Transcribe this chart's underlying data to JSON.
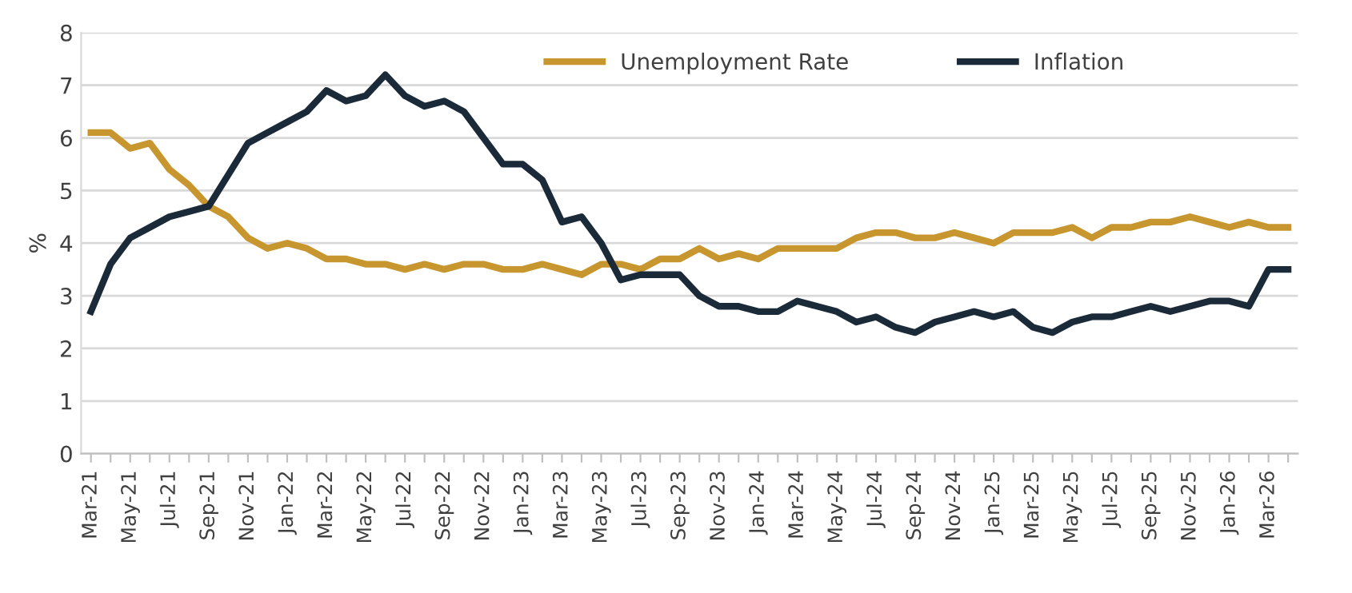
{
  "chart_data": {
    "type": "line",
    "ylabel": "%",
    "categories": [
      "Mar-21",
      null,
      "May-21",
      null,
      "Jul-21",
      null,
      "Sep-21",
      null,
      "Nov-21",
      null,
      "Jan-22",
      null,
      "Mar-22",
      null,
      "May-22",
      null,
      "Jul-22",
      null,
      "Sep-22",
      null,
      "Nov-22",
      null,
      "Jan-23",
      null,
      "Mar-23",
      null,
      "May-23",
      null,
      "Jul-23",
      null,
      "Sep-23",
      null,
      "Nov-23",
      null,
      "Jan-24",
      null,
      "Mar-24",
      null,
      "May-24",
      null,
      "Jul-24",
      null,
      "Sep-24",
      null,
      "Nov-24",
      null,
      "Jan-25",
      null,
      "Mar-25",
      null,
      "May-25",
      null,
      "Jul-25",
      null,
      "Sep-25",
      null,
      "Nov-25",
      null,
      "Jan-26",
      null,
      "Mar-26",
      null
    ],
    "series": [
      {
        "name": "Unemployment Rate",
        "color": "#c8962e",
        "values": [
          6.1,
          6.1,
          5.8,
          5.9,
          5.4,
          5.1,
          4.7,
          4.5,
          4.1,
          3.9,
          4.0,
          3.9,
          3.7,
          3.7,
          3.6,
          3.6,
          3.5,
          3.6,
          3.5,
          3.6,
          3.6,
          3.5,
          3.5,
          3.6,
          3.5,
          3.4,
          3.6,
          3.6,
          3.5,
          3.7,
          3.7,
          3.9,
          3.7,
          3.8,
          3.7,
          3.9,
          3.9,
          3.9,
          3.9,
          4.1,
          4.2,
          4.2,
          4.1,
          4.1,
          4.2,
          4.1,
          4.0,
          4.2,
          4.2,
          4.2,
          4.3,
          4.1,
          4.3,
          4.3,
          4.4,
          4.4,
          4.5,
          4.4,
          4.3,
          4.4,
          4.3,
          4.3
        ]
      },
      {
        "name": "Inflation",
        "color": "#1b2a38",
        "values": [
          2.7,
          3.6,
          4.1,
          4.3,
          4.5,
          4.6,
          4.7,
          5.3,
          5.9,
          6.1,
          6.3,
          6.5,
          6.9,
          6.7,
          6.8,
          7.2,
          6.8,
          6.6,
          6.7,
          6.5,
          6.0,
          5.5,
          5.5,
          5.2,
          4.4,
          4.5,
          4.0,
          3.3,
          3.4,
          3.4,
          3.4,
          3.0,
          2.8,
          2.8,
          2.7,
          2.7,
          2.9,
          2.8,
          2.7,
          2.5,
          2.6,
          2.4,
          2.3,
          2.5,
          2.6,
          2.7,
          2.6,
          2.7,
          2.4,
          2.3,
          2.5,
          2.6,
          2.6,
          2.7,
          2.8,
          2.7,
          2.8,
          2.9,
          2.9,
          2.8,
          3.5,
          3.5
        ]
      }
    ],
    "ylim": [
      0,
      8
    ],
    "yticks": [
      0,
      1,
      2,
      3,
      4,
      5,
      6,
      7,
      8
    ],
    "grid": "y",
    "legend": "top",
    "line_style": "solid",
    "marker": "none"
  }
}
